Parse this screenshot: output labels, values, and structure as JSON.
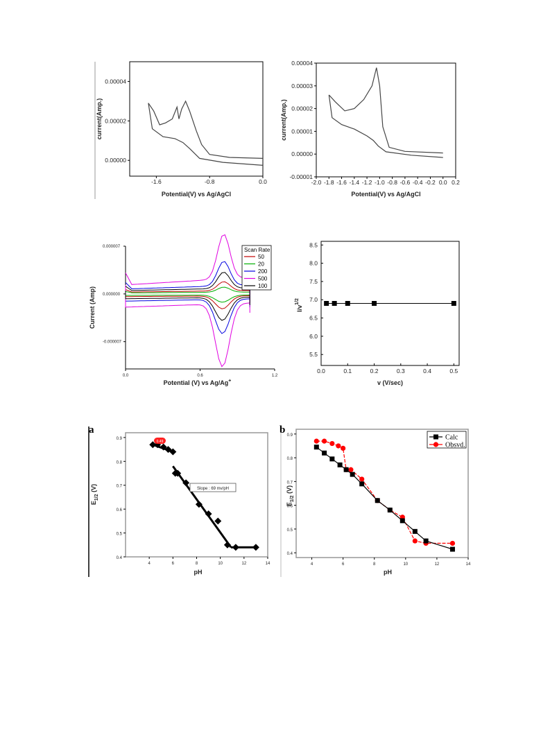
{
  "chart_data": [
    {
      "type": "line",
      "xlabel": "Potential(V) vs Ag/AgCl",
      "ylabel": "current(Amp.)",
      "xlim": [
        -2.0,
        0.0
      ],
      "ylim": [
        -8e-06,
        5e-05
      ],
      "x_ticks": [
        "-1.6",
        "-0.8",
        "0.0"
      ],
      "y_ticks": [
        "0.00000",
        "0.00002",
        "0.00004"
      ],
      "series": [
        {
          "values": [
            [
              -1.72,
              2.9e-05
            ],
            [
              -1.64,
              2.5e-05
            ],
            [
              -1.55,
              1.8e-05
            ],
            [
              -1.46,
              1.9e-05
            ],
            [
              -1.36,
              2.1e-05
            ],
            [
              -1.29,
              2.7e-05
            ],
            [
              -1.26,
              2.1e-05
            ],
            [
              -1.22,
              2.6e-05
            ],
            [
              -1.16,
              3e-05
            ],
            [
              -1.1,
              2.5e-05
            ],
            [
              -1.0,
              1.5e-05
            ],
            [
              -0.92,
              8e-06
            ],
            [
              -0.8,
              3e-06
            ],
            [
              -0.5,
              1.5e-06
            ],
            [
              0.0,
              1e-06
            ]
          ]
        },
        {
          "values": [
            [
              -1.72,
              2.9e-05
            ],
            [
              -1.66,
              1.6e-05
            ],
            [
              -1.5,
              1.2e-05
            ],
            [
              -1.32,
              1.1e-05
            ],
            [
              -1.2,
              9e-06
            ],
            [
              -1.1,
              6e-06
            ],
            [
              -0.95,
              1e-06
            ],
            [
              -0.6,
              -1e-06
            ],
            [
              0.0,
              -2.5e-06
            ]
          ]
        }
      ]
    },
    {
      "type": "line",
      "xlabel": "Potential(V) vs Ag/AgCl",
      "ylabel": "current(Amp.)",
      "xlim": [
        -2.0,
        0.2
      ],
      "ylim": [
        -1e-05,
        4e-05
      ],
      "x_ticks": [
        "-2.0",
        "-1.8",
        "-1.6",
        "-1.4",
        "-1.2",
        "-1.0",
        "-0.8",
        "-0.6",
        "-0.4",
        "-0.2",
        "0.0",
        "0.2"
      ],
      "y_ticks": [
        "-0.00001",
        "0.00000",
        "0.00001",
        "0.00002",
        "0.00003",
        "0.00004"
      ],
      "series": [
        {
          "values": [
            [
              -1.8,
              2.6e-05
            ],
            [
              -1.7,
              2.3e-05
            ],
            [
              -1.55,
              1.9e-05
            ],
            [
              -1.4,
              2e-05
            ],
            [
              -1.25,
              2.4e-05
            ],
            [
              -1.12,
              3e-05
            ],
            [
              -1.05,
              3.8e-05
            ],
            [
              -1.0,
              3e-05
            ],
            [
              -0.95,
              1.2e-05
            ],
            [
              -0.85,
              3e-06
            ],
            [
              -0.6,
              1.2e-06
            ],
            [
              0.0,
              5e-07
            ]
          ]
        },
        {
          "values": [
            [
              -1.8,
              2.6e-05
            ],
            [
              -1.75,
              1.6e-05
            ],
            [
              -1.6,
              1.3e-05
            ],
            [
              -1.4,
              1.1e-05
            ],
            [
              -1.2,
              8e-06
            ],
            [
              -1.1,
              6e-06
            ],
            [
              -1.02,
              3.5e-06
            ],
            [
              -0.9,
              1e-06
            ],
            [
              -0.5,
              -5e-07
            ],
            [
              0.0,
              -1.5e-06
            ]
          ]
        }
      ]
    },
    {
      "type": "line",
      "xlabel": "Potential (V) vs Ag/Ag",
      "xlabel_sup": "+",
      "ylabel": "Current (Amp)",
      "xlim": [
        0.0,
        1.2
      ],
      "ylim": [
        -1.1e-05,
        7e-06
      ],
      "x_ticks": [
        "0.0",
        "0.6",
        "1.2"
      ],
      "y_ticks": [
        "0.000007",
        "0.000000",
        "-0.000007"
      ],
      "legend_title": "Scan Rate",
      "legend_position": "top-right",
      "series": [
        {
          "name": "50",
          "color": "#c00000",
          "k": 0.45
        },
        {
          "name": "20",
          "color": "#00b000",
          "k": 0.25
        },
        {
          "name": "200",
          "color": "#0000e0",
          "k": 1.2
        },
        {
          "name": "500",
          "color": "#e000e0",
          "k": 2.2
        },
        {
          "name": "100",
          "color": "#000000",
          "k": 0.8
        }
      ]
    },
    {
      "type": "line",
      "xlabel": "v (V/sec)",
      "ylabel": "I/v",
      "ylabel_sup": "1/2",
      "xlim": [
        0.0,
        0.52
      ],
      "ylim": [
        5.2,
        8.6
      ],
      "x_ticks": [
        "0.0",
        "0.1",
        "0.2",
        "0.3",
        "0.4",
        "0.5"
      ],
      "y_ticks": [
        "5.5",
        "6.0",
        "6.5",
        "7.0",
        "7.5",
        "8.0",
        "8.5"
      ],
      "series": [
        {
          "x": [
            0.02,
            0.05,
            0.1,
            0.2,
            0.5
          ],
          "y": [
            6.9,
            6.9,
            6.9,
            6.9,
            6.9
          ]
        }
      ]
    },
    {
      "type": "scatter",
      "panel_label": "a",
      "xlabel": "pH",
      "ylabel": "E",
      "ylabel_sub": "1/2",
      "ylabel_unit": " (V)",
      "xlim": [
        2,
        14
      ],
      "ylim": [
        0.4,
        0.92
      ],
      "x_ticks": [
        "4",
        "6",
        "8",
        "10",
        "12",
        "14"
      ],
      "y_ticks": [
        "0.4",
        "0.5",
        "0.6",
        "0.7",
        "0.8",
        "0.9"
      ],
      "annotation": "Slope : 69 mv/pH",
      "highlight_label": "0.49",
      "series": [
        {
          "x": [
            4.3,
            4.7,
            5.2,
            5.6,
            6.0,
            6.2,
            6.4,
            7.1,
            8.2,
            9.0,
            9.8,
            10.6,
            11.3,
            13.0
          ],
          "y": [
            0.87,
            0.87,
            0.86,
            0.85,
            0.84,
            0.75,
            0.75,
            0.71,
            0.62,
            0.58,
            0.55,
            0.45,
            0.44,
            0.44
          ]
        }
      ],
      "fit_lines": [
        {
          "x": [
            4.3,
            6.0
          ],
          "y": [
            0.87,
            0.84
          ]
        },
        {
          "x": [
            6.0,
            10.9
          ],
          "y": [
            0.78,
            0.44
          ]
        },
        {
          "x": [
            10.9,
            13.0
          ],
          "y": [
            0.44,
            0.44
          ]
        }
      ]
    },
    {
      "type": "line",
      "panel_label": "b",
      "xlabel": "pH",
      "ylabel": "E",
      "ylabel_sub": "1/2",
      "ylabel_unit": " (V)",
      "xlim": [
        3,
        14
      ],
      "ylim": [
        0.38,
        0.92
      ],
      "x_ticks": [
        "4",
        "6",
        "8",
        "10",
        "12",
        "14"
      ],
      "y_ticks": [
        "0.4",
        "0.5",
        "0.6",
        "0.7",
        "0.8",
        "0.9"
      ],
      "series": [
        {
          "name": "Calc",
          "color": "#000000",
          "x": [
            4.3,
            4.8,
            5.3,
            5.8,
            6.2,
            6.6,
            7.2,
            8.2,
            9.0,
            9.8,
            10.6,
            11.3,
            13.0
          ],
          "y": [
            0.845,
            0.82,
            0.795,
            0.77,
            0.75,
            0.73,
            0.69,
            0.62,
            0.58,
            0.535,
            0.49,
            0.45,
            0.415
          ]
        },
        {
          "name": "Obsvd.",
          "color": "#ff0000",
          "x": [
            4.3,
            4.8,
            5.3,
            5.7,
            6.0,
            6.2,
            6.5,
            7.2,
            8.2,
            9.0,
            9.8,
            10.6,
            11.3,
            13.0
          ],
          "y": [
            0.87,
            0.87,
            0.86,
            0.85,
            0.84,
            0.75,
            0.75,
            0.71,
            0.62,
            0.58,
            0.55,
            0.45,
            0.44,
            0.44
          ]
        }
      ]
    }
  ]
}
